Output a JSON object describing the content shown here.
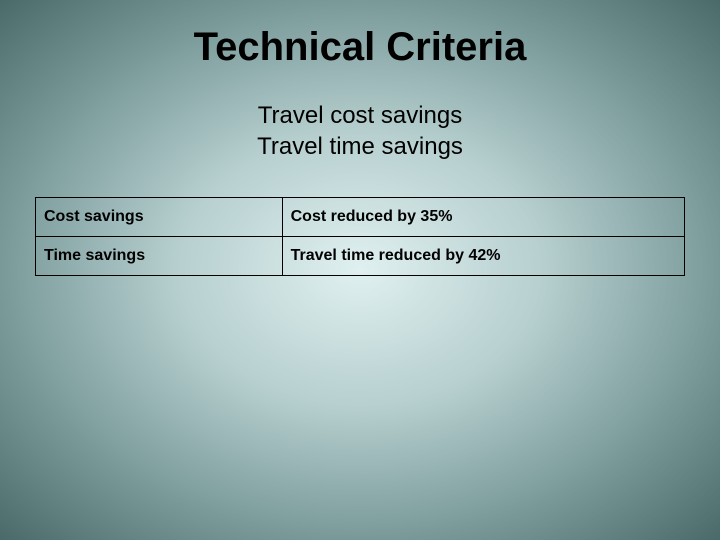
{
  "slide": {
    "title": "Technical Criteria",
    "subtitles": {
      "line1": "Travel cost savings",
      "line2": "Travel time savings"
    },
    "table": {
      "rows": [
        {
          "label": "Cost savings",
          "value": "Cost reduced by 35%"
        },
        {
          "label": "Time savings",
          "value": "Travel time reduced by 42%"
        }
      ]
    },
    "styling": {
      "background_gradient": {
        "center": "#e0f0f0",
        "mid1": "#b8d0d0",
        "mid2": "#7a9a9a",
        "edge": "#4a6a6a"
      },
      "title_fontsize": 40,
      "title_color": "#000000",
      "subtitle_fontsize": 24,
      "subtitle_color": "#000000",
      "table_border_color": "#000000",
      "table_font_size": 16,
      "table_text_color": "#000000",
      "label_col_width_pct": 38,
      "value_col_width_pct": 62
    }
  }
}
